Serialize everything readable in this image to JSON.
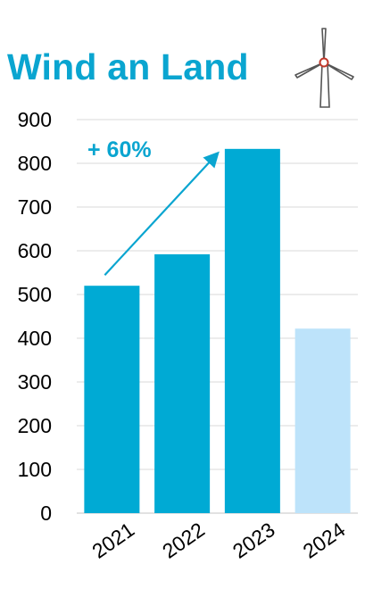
{
  "title": "Wind an Land",
  "colors": {
    "bar": "#00aad4",
    "bar_forecast": "#bde3fa",
    "accent": "#0aa5d0",
    "grid": "#d9d9d9",
    "turbine_hub": "#c0392b"
  },
  "icons": {
    "turbine": "wind-turbine-icon"
  },
  "chart_data": {
    "type": "bar",
    "title": "Wind an Land",
    "categories": [
      "2021",
      "2022",
      "2023",
      "2024"
    ],
    "values": [
      520,
      592,
      833,
      422
    ],
    "bar_colors": [
      "#00aad4",
      "#00aad4",
      "#00aad4",
      "#bde3fa"
    ],
    "ylim": [
      0,
      900
    ],
    "yticks": [
      0,
      100,
      200,
      300,
      400,
      500,
      600,
      700,
      800,
      900
    ],
    "grid": true,
    "xlabel": "",
    "ylabel": "",
    "annotation": {
      "text": "+ 60%",
      "from_category": "2021",
      "to_category": "2023"
    }
  }
}
